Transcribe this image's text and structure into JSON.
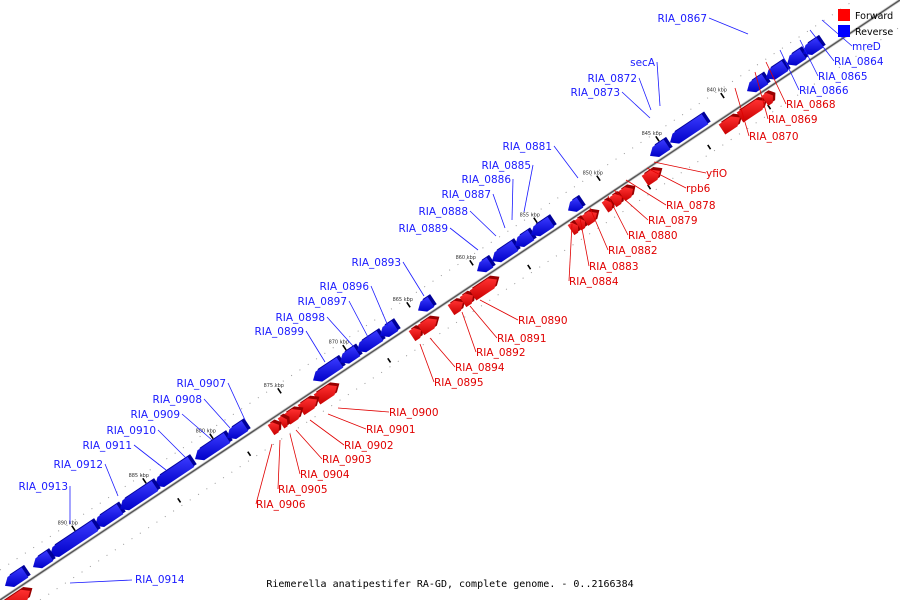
{
  "legend": {
    "forward_label": "Forward",
    "reverse_label": "Reverse",
    "forward_color": "#ff0000",
    "reverse_color": "#0000ff"
  },
  "footer": "Riemerella anatipestifer RA-GD, complete genome. - 0..2166384",
  "ticks": [
    "840 kbp",
    "845 kbp",
    "850 kbp",
    "855 kbp",
    "860 kbp",
    "865 kbp",
    "870 kbp",
    "875 kbp",
    "880 kbp",
    "885 kbp",
    "890 kbp"
  ],
  "reverse_genes": [
    "RIA_0867",
    "secA",
    "RIA_0872",
    "RIA_0873",
    "RIA_0881",
    "RIA_0885",
    "RIA_0886",
    "RIA_0887",
    "RIA_0888",
    "RIA_0889",
    "RIA_0893",
    "RIA_0896",
    "RIA_0897",
    "RIA_0898",
    "RIA_0899",
    "RIA_0907",
    "RIA_0908",
    "RIA_0909",
    "RIA_0910",
    "RIA_0911",
    "RIA_0912",
    "RIA_0913",
    "RIA_0914",
    "mreD",
    "RIA_0864",
    "RIA_0865",
    "RIA_0866"
  ],
  "forward_genes": [
    "RIA_0868",
    "RIA_0869",
    "RIA_0870",
    "yfiO",
    "rpb6",
    "RIA_0878",
    "RIA_0879",
    "RIA_0880",
    "RIA_0882",
    "RIA_0883",
    "RIA_0884",
    "RIA_0890",
    "RIA_0891",
    "RIA_0892",
    "RIA_0894",
    "RIA_0895",
    "RIA_0900",
    "RIA_0901",
    "RIA_0902",
    "RIA_0903",
    "RIA_0904",
    "RIA_0905",
    "RIA_0906"
  ]
}
